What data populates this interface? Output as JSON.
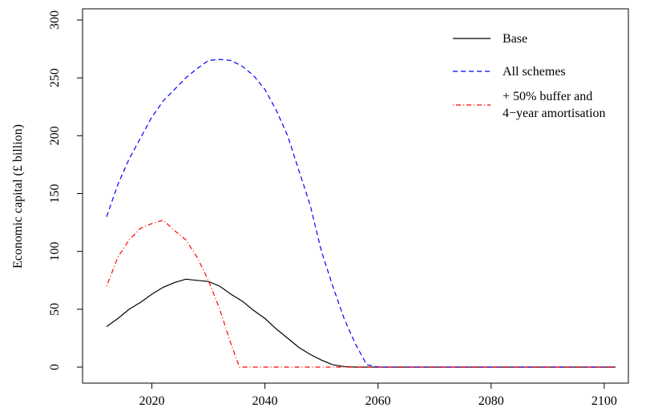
{
  "chart_data": {
    "type": "line",
    "title": "",
    "xlabel": "",
    "ylabel": "Economic capital  (£ billion)",
    "xlim": [
      2010,
      2103
    ],
    "ylim": [
      -10,
      300
    ],
    "xticks": [
      2020,
      2040,
      2060,
      2080,
      2100
    ],
    "yticks": [
      0,
      50,
      100,
      150,
      200,
      250,
      300
    ],
    "xtick_labels": [
      "2020",
      "2040",
      "2060",
      "2080",
      "2100"
    ],
    "ytick_labels": [
      "0",
      "50",
      "100",
      "150",
      "200",
      "250",
      "300"
    ],
    "grid": false,
    "legend": {
      "position": "top-right",
      "entries": [
        {
          "series": 0,
          "lines": [
            "Base"
          ]
        },
        {
          "series": 1,
          "lines": [
            "All schemes"
          ]
        },
        {
          "series": 2,
          "lines": [
            "+ 50% buffer and",
            "4−year amortisation"
          ]
        }
      ]
    },
    "series": [
      {
        "name": "Base",
        "color": "#000000",
        "dash": "solid",
        "points": [
          [
            2012,
            35
          ],
          [
            2014,
            42
          ],
          [
            2016,
            50
          ],
          [
            2018,
            56
          ],
          [
            2020,
            63
          ],
          [
            2022,
            69
          ],
          [
            2024,
            73
          ],
          [
            2026,
            76
          ],
          [
            2028,
            75
          ],
          [
            2030,
            74
          ],
          [
            2032,
            70
          ],
          [
            2034,
            63
          ],
          [
            2036,
            57
          ],
          [
            2038,
            49
          ],
          [
            2040,
            42
          ],
          [
            2042,
            33
          ],
          [
            2044,
            25
          ],
          [
            2046,
            17
          ],
          [
            2048,
            11
          ],
          [
            2050,
            6
          ],
          [
            2052,
            2
          ],
          [
            2054,
            0.5
          ],
          [
            2056,
            0
          ],
          [
            2102,
            0
          ]
        ]
      },
      {
        "name": "All schemes",
        "color": "#0000ff",
        "dash": "dashed",
        "points": [
          [
            2012,
            130
          ],
          [
            2014,
            158
          ],
          [
            2016,
            180
          ],
          [
            2018,
            198
          ],
          [
            2020,
            216
          ],
          [
            2022,
            230
          ],
          [
            2024,
            240
          ],
          [
            2026,
            250
          ],
          [
            2028,
            258
          ],
          [
            2030,
            265
          ],
          [
            2032,
            266
          ],
          [
            2034,
            265
          ],
          [
            2036,
            260
          ],
          [
            2038,
            252
          ],
          [
            2040,
            240
          ],
          [
            2042,
            222
          ],
          [
            2044,
            200
          ],
          [
            2046,
            170
          ],
          [
            2048,
            140
          ],
          [
            2050,
            100
          ],
          [
            2052,
            70
          ],
          [
            2054,
            42
          ],
          [
            2056,
            20
          ],
          [
            2058,
            2
          ],
          [
            2060,
            0
          ],
          [
            2102,
            0
          ]
        ]
      },
      {
        "name": "+ 50% buffer and 4−year amortisation",
        "color": "#ff0000",
        "dash": "dotdash",
        "points": [
          [
            2012,
            70
          ],
          [
            2014,
            95
          ],
          [
            2016,
            110
          ],
          [
            2018,
            120
          ],
          [
            2020,
            124
          ],
          [
            2022,
            127
          ],
          [
            2024,
            118
          ],
          [
            2026,
            110
          ],
          [
            2028,
            95
          ],
          [
            2030,
            75
          ],
          [
            2032,
            50
          ],
          [
            2034,
            20
          ],
          [
            2035.5,
            0
          ],
          [
            2102,
            0
          ]
        ]
      }
    ]
  }
}
